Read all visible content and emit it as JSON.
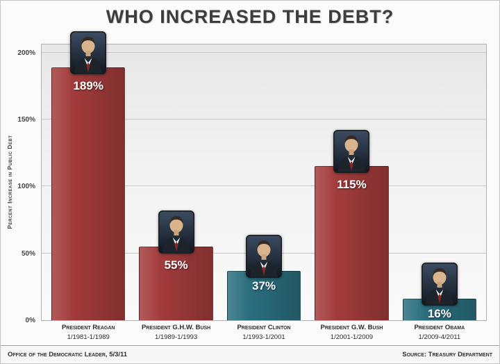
{
  "chart_data": {
    "type": "bar",
    "title": "WHO INCREASED THE DEBT?",
    "ylabel": "Percent Increase in Public Debt",
    "ylim": [
      0,
      207
    ],
    "grid": true,
    "yticks": [
      0,
      50,
      100,
      150,
      200
    ],
    "ytick_labels": [
      "0%",
      "50%",
      "100%",
      "150%",
      "200%"
    ],
    "categories": [
      "President Reagan",
      "President G.H.W. Bush",
      "President Clinton",
      "President G.W. Bush",
      "President Obama"
    ],
    "values": [
      189,
      55,
      37,
      115,
      16
    ],
    "bars": [
      {
        "president": "President Reagan",
        "term": "1/1981-1/1989",
        "value": 189,
        "value_label": "189%",
        "color": "#a23b3b"
      },
      {
        "president": "President G.H.W. Bush",
        "term": "1/1989-1/1993",
        "value": 55,
        "value_label": "55%",
        "color": "#a23b3b"
      },
      {
        "president": "President Clinton",
        "term": "1/1993-1/2001",
        "value": 37,
        "value_label": "37%",
        "color": "#2a6e7e"
      },
      {
        "president": "President G.W. Bush",
        "term": "1/2001-1/2009",
        "value": 115,
        "value_label": "115%",
        "color": "#a23b3b"
      },
      {
        "president": "President Obama",
        "term": "1/2009-4/2011",
        "value": 16,
        "value_label": "16%",
        "color": "#2a6e7e"
      }
    ],
    "legend_position": "none"
  },
  "colors": {
    "republican_bar": "#a23b3b",
    "democrat_bar": "#2a6e7e",
    "grid_line": "#c8c8c8",
    "title_text": "#3d3d3d"
  },
  "footer": {
    "left": "Office of the Democratic Leader, 5/3/11",
    "right": "Source: Treasury Department"
  }
}
